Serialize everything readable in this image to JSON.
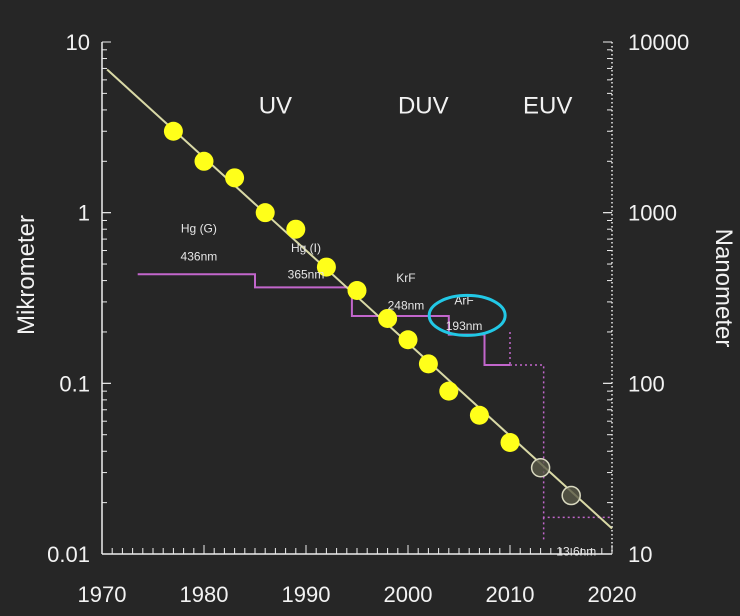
{
  "chart_data": {
    "type": "scatter",
    "title": "",
    "xlabel": "",
    "ylabel_left": "Mikrometer",
    "ylabel_right": "Nanometer",
    "x_ticks": [
      "1970",
      "1980",
      "1990",
      "2000",
      "2010",
      "2020"
    ],
    "y_ticks_left": [
      "0.01",
      "0.1",
      "1",
      "10"
    ],
    "y_ticks_right": [
      "10",
      "100",
      "1000",
      "10000"
    ],
    "xlim": [
      1970,
      2020
    ],
    "ylim": [
      0.01,
      10
    ],
    "yscale": "log",
    "grid": false,
    "band_labels": [
      {
        "text": "UV",
        "x": 1987,
        "y": 4.3
      },
      {
        "text": "DUV",
        "x": 2001.5,
        "y": 4.3
      },
      {
        "text": "EUV",
        "x": 2013.7,
        "y": 4.3
      }
    ],
    "trend_line": {
      "x": [
        1970.5,
        2020
      ],
      "y": [
        6.9,
        0.0141
      ]
    },
    "series": [
      {
        "values": [
          {
            "x": 1977,
            "y": 3.0
          },
          {
            "x": 1980,
            "y": 2.0
          },
          {
            "x": 1983,
            "y": 1.6
          },
          {
            "x": 1986,
            "y": 1.0
          },
          {
            "x": 1989,
            "y": 0.8
          },
          {
            "x": 1992,
            "y": 0.48
          },
          {
            "x": 1995,
            "y": 0.35
          },
          {
            "x": 1998,
            "y": 0.24
          },
          {
            "x": 2000,
            "y": 0.18
          },
          {
            "x": 2002,
            "y": 0.13
          },
          {
            "x": 2004,
            "y": 0.09
          },
          {
            "x": 2007,
            "y": 0.065
          },
          {
            "x": 2010,
            "y": 0.045
          }
        ],
        "color": "#ffff1a"
      },
      {
        "values": [
          {
            "x": 2013,
            "y": 0.032
          },
          {
            "x": 2016,
            "y": 0.022
          }
        ],
        "color": "#5a5a48",
        "hollow": true
      }
    ],
    "wavelength_steps": [
      {
        "text": [
          "Hg (G)",
          "436nm"
        ],
        "from": 1973.5,
        "to": 1985,
        "y": 0.436,
        "label_x": 1979.5,
        "label_y": [
          0.82,
          0.56
        ]
      },
      {
        "text": [
          "Hg (I)",
          "365nm"
        ],
        "from": 1985,
        "to": 1994.5,
        "y": 0.365,
        "label_x": 1990,
        "label_y": [
          0.63,
          0.44
        ]
      },
      {
        "text": [
          "KrF",
          "248nm"
        ],
        "from": 1994.5,
        "to": 2004,
        "y": 0.248,
        "label_x": 1999.8,
        "label_y": [
          0.42,
          0.29
        ]
      },
      {
        "text": [
          "ArF",
          "193nm"
        ],
        "from": 2004,
        "to": 2007.5,
        "y": 0.193,
        "label_x": 2005.5,
        "label_y": [
          0.31,
          0.22
        ]
      },
      {
        "text": [
          "13.6nm"
        ],
        "from": 2013,
        "to": 2020,
        "y": 0.0136,
        "label_x": 2016.5,
        "label_y": [
          0.0105
        ]
      }
    ],
    "color_steps": "#c266cc",
    "color_trend": "#d9d9a6",
    "color_highlight": "#22c8e6"
  }
}
